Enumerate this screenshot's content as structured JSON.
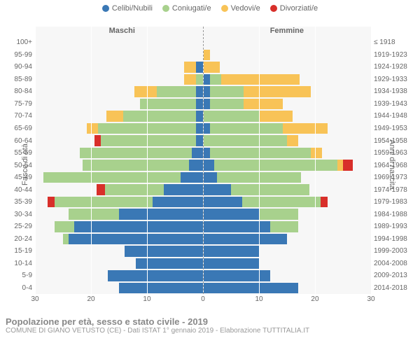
{
  "legend": [
    {
      "label": "Celibi/Nubili",
      "color": "#3a78b5"
    },
    {
      "label": "Coniugati/e",
      "color": "#a8d18d"
    },
    {
      "label": "Vedovi/e",
      "color": "#f8c357"
    },
    {
      "label": "Divorziati/e",
      "color": "#d82f2a"
    }
  ],
  "chart": {
    "type": "population-pyramid",
    "background_color": "#f7f7f7",
    "grid_color": "#ffffff",
    "xlim": 30,
    "xticks": [
      30,
      20,
      10,
      0,
      10,
      20,
      30
    ],
    "xtick_positions_pct": [
      0,
      16.67,
      33.33,
      50,
      66.67,
      83.33,
      100
    ],
    "male_label": "Maschi",
    "female_label": "Femmine",
    "y_title_left": "Fasce di età",
    "y_title_right": "Anni di nascita",
    "age_labels": [
      "100+",
      "95-99",
      "90-94",
      "85-89",
      "80-84",
      "75-79",
      "70-74",
      "65-69",
      "60-64",
      "55-59",
      "50-54",
      "45-49",
      "40-44",
      "35-39",
      "30-34",
      "25-29",
      "20-24",
      "15-19",
      "10-14",
      "5-9",
      "0-4"
    ],
    "birth_labels": [
      "≤ 1918",
      "1919-1923",
      "1924-1928",
      "1929-1933",
      "1934-1938",
      "1939-1943",
      "1944-1948",
      "1949-1953",
      "1954-1958",
      "1959-1963",
      "1964-1968",
      "1969-1973",
      "1974-1978",
      "1979-1983",
      "1984-1988",
      "1989-1993",
      "1994-1998",
      "1999-2003",
      "2004-2008",
      "2009-2013",
      "2014-2018"
    ],
    "male": [
      [
        0,
        0,
        0,
        0
      ],
      [
        0,
        0,
        0,
        0
      ],
      [
        1.2,
        0,
        2.2,
        0
      ],
      [
        0,
        1.2,
        2.2,
        0
      ],
      [
        1.2,
        7,
        4,
        0
      ],
      [
        1.2,
        10,
        0,
        0
      ],
      [
        1.2,
        13,
        3,
        0
      ],
      [
        1.2,
        17.5,
        2,
        0
      ],
      [
        1.2,
        17,
        0,
        1.2
      ],
      [
        2,
        20,
        0,
        0
      ],
      [
        2.5,
        19,
        0,
        0
      ],
      [
        4,
        24.5,
        0,
        0
      ],
      [
        7,
        10.5,
        0,
        1.5
      ],
      [
        9,
        17.5,
        0,
        1.2
      ],
      [
        15,
        9,
        0,
        0
      ],
      [
        23,
        3.5,
        0,
        0
      ],
      [
        24,
        1,
        0,
        0
      ],
      [
        14,
        0,
        0,
        0
      ],
      [
        12,
        0,
        0,
        0
      ],
      [
        17,
        0,
        0,
        0
      ],
      [
        15,
        0,
        0,
        0
      ]
    ],
    "female": [
      [
        0,
        0,
        0,
        0
      ],
      [
        0,
        0,
        1.2,
        0
      ],
      [
        0,
        0,
        3,
        0
      ],
      [
        1.2,
        2,
        14,
        0
      ],
      [
        1.2,
        6,
        12,
        0
      ],
      [
        1.2,
        6,
        7,
        0
      ],
      [
        0,
        10,
        6,
        0
      ],
      [
        1.2,
        13,
        8,
        0
      ],
      [
        0,
        15,
        2,
        0
      ],
      [
        1.2,
        18,
        2,
        0
      ],
      [
        2,
        22,
        1,
        1.8
      ],
      [
        2.5,
        15,
        0,
        0
      ],
      [
        5,
        14,
        0,
        0
      ],
      [
        7,
        14,
        0,
        1.2
      ],
      [
        10,
        7,
        0,
        0
      ],
      [
        12,
        5,
        0,
        0
      ],
      [
        15,
        0,
        0,
        0
      ],
      [
        10,
        0,
        0,
        0
      ],
      [
        10,
        0,
        0,
        0
      ],
      [
        12,
        0,
        0,
        0
      ],
      [
        17,
        0,
        0,
        0
      ]
    ]
  },
  "footer": {
    "title": "Popolazione per età, sesso e stato civile - 2019",
    "subtitle": "COMUNE DI GIANO VETUSTO (CE) - Dati ISTAT 1° gennaio 2019 - Elaborazione TUTTITALIA.IT"
  }
}
